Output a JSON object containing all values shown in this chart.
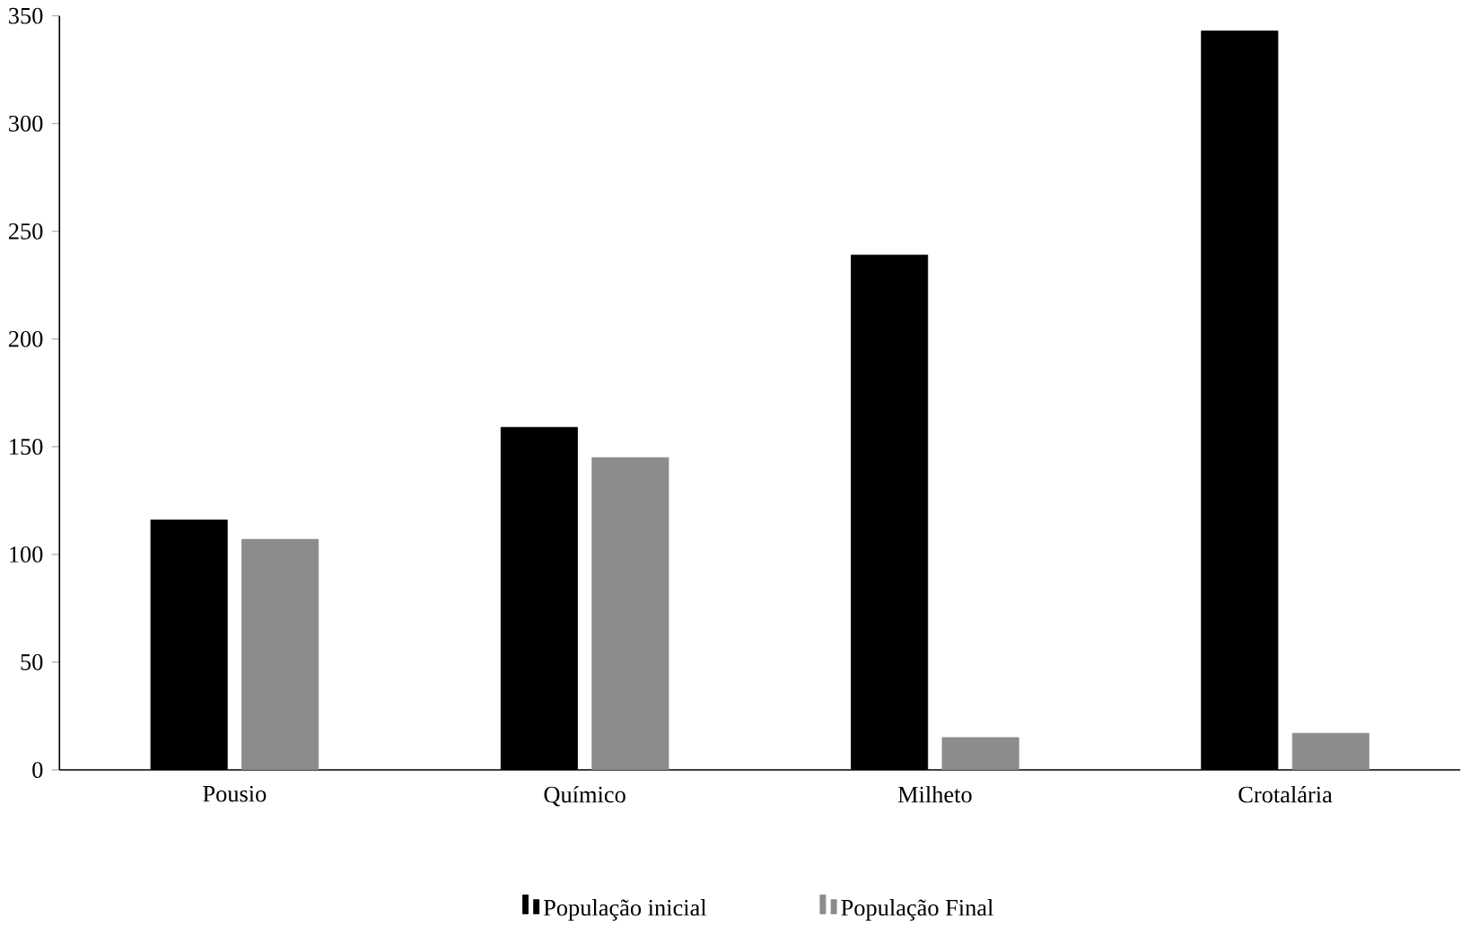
{
  "chart_data": {
    "type": "bar",
    "categories": [
      "Pousio",
      "Químico",
      "Milheto",
      "Crotalária"
    ],
    "series": [
      {
        "name": "População inicial",
        "color": "#000000",
        "values": [
          116,
          159,
          239,
          343
        ]
      },
      {
        "name": "População Final",
        "color": "#8c8c8c",
        "values": [
          107,
          145,
          15,
          17
        ]
      }
    ],
    "ylim": [
      0,
      350
    ],
    "yticks": [
      0,
      50,
      100,
      150,
      200,
      250,
      300,
      350
    ],
    "grid": false,
    "legend": "bottom"
  }
}
